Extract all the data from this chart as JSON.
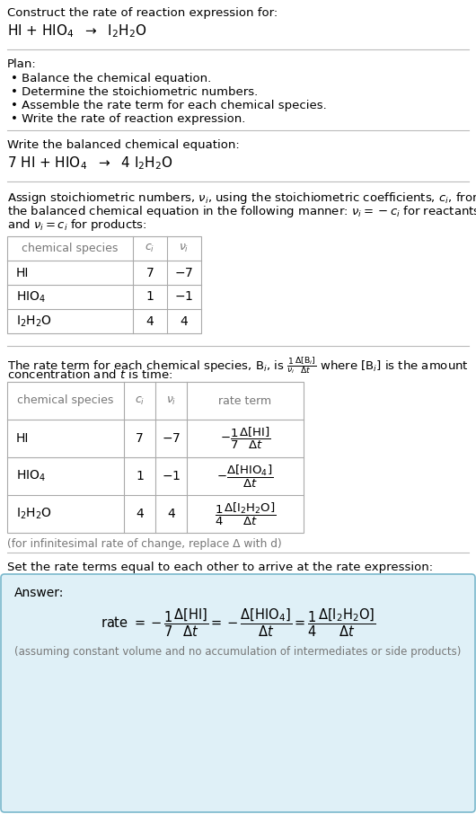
{
  "bg_color": "#ffffff",
  "answer_bg_color": "#dff0f7",
  "answer_border_color": "#7ab8cc",
  "text_color": "#000000",
  "gray_color": "#777777",
  "line_color": "#bbbbbb",
  "section1_title": "Construct the rate of reaction expression for:",
  "plan_title": "Plan:",
  "bullet_items": [
    "• Balance the chemical equation.",
    "• Determine the stoichiometric numbers.",
    "• Assemble the rate term for each chemical species.",
    "• Write the rate of reaction expression."
  ],
  "balanced_eq_label": "Write the balanced chemical equation:",
  "stoich_intro": [
    "Assign stoichiometric numbers, $\\nu_i$, using the stoichiometric coefficients, $c_i$, from",
    "the balanced chemical equation in the following manner: $\\nu_i = -c_i$ for reactants",
    "and $\\nu_i = c_i$ for products:"
  ],
  "infinitesimal_note": "(for infinitesimal rate of change, replace Δ with d)",
  "set_equal_text": "Set the rate terms equal to each other to arrive at the rate expression:",
  "answer_label": "Answer:",
  "answer_note": "(assuming constant volume and no accumulation of intermediates or side products)",
  "main_font_size": 9.5,
  "eq_font_size": 11.0,
  "table_header_color": "#777777",
  "table_border_color": "#aaaaaa"
}
